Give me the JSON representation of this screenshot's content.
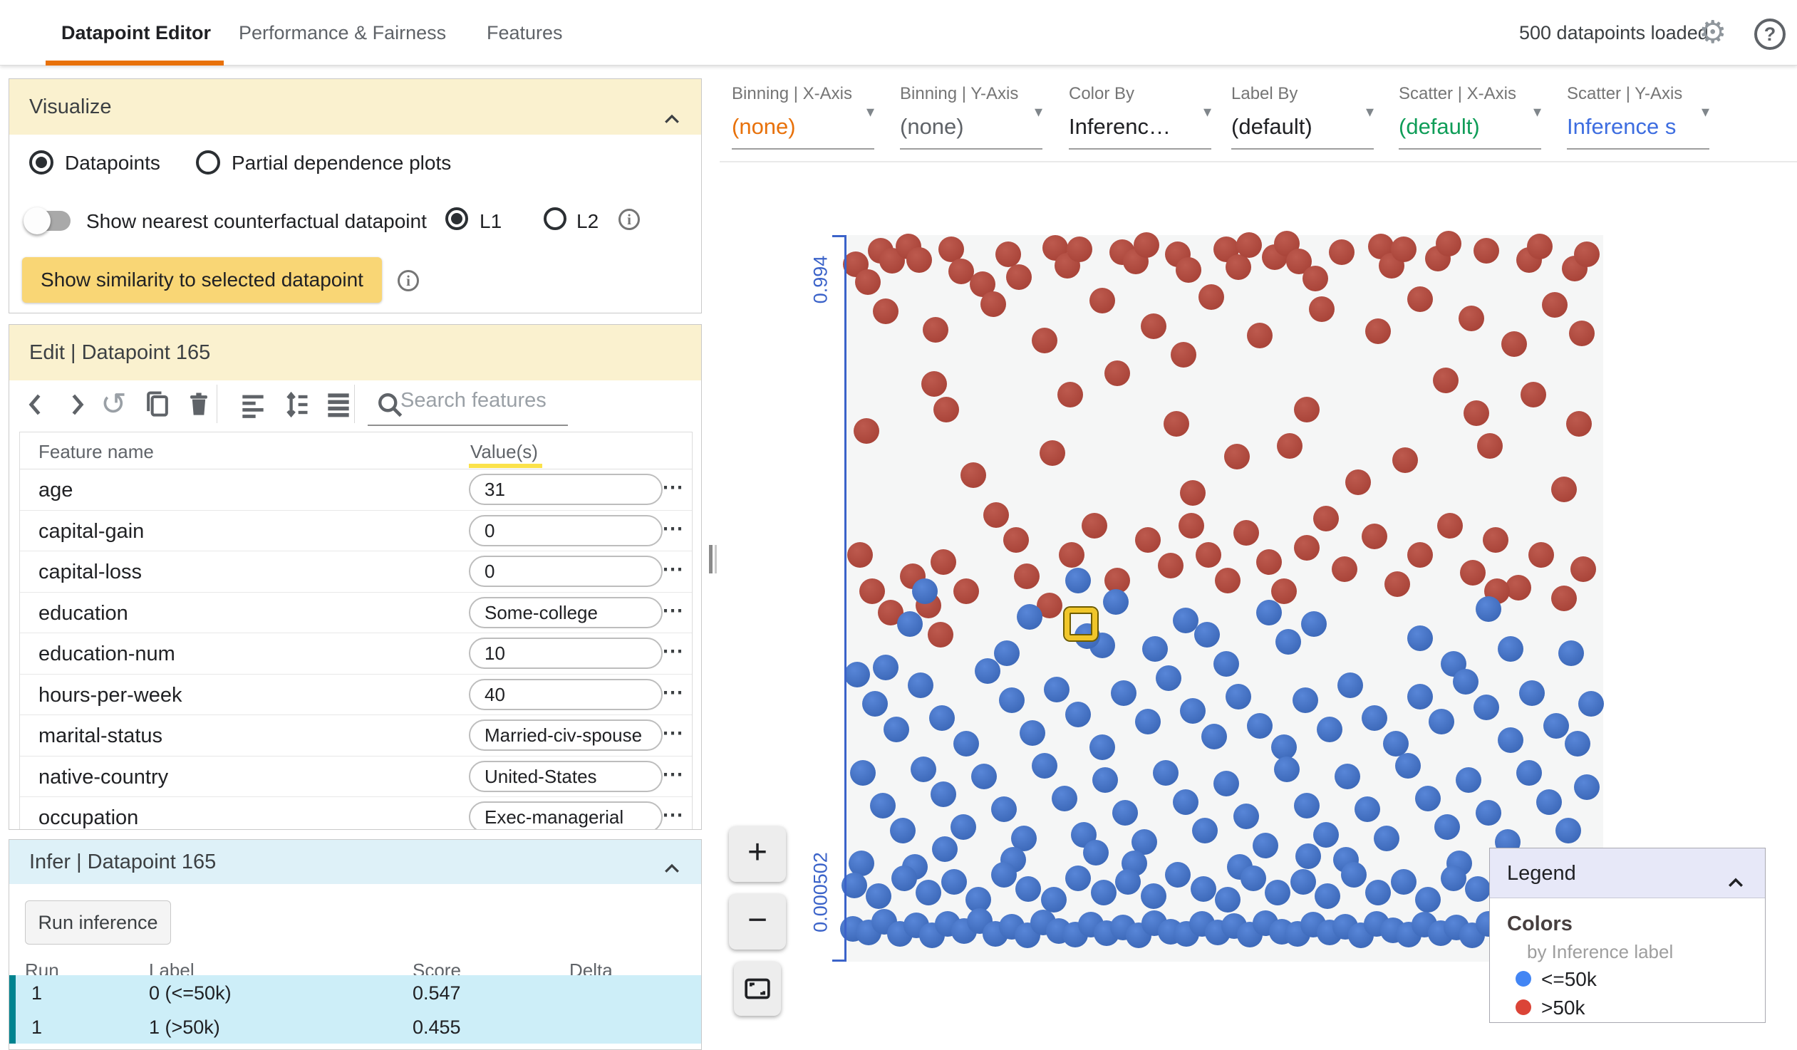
{
  "colors": {
    "accent_orange": "#e8710a",
    "green": "#0f9d58",
    "link_blue": "#3d6de0",
    "axis_blue": "#3b63c9",
    "teal": "#00838f",
    "legend_blue": "#4285f4",
    "legend_red": "#db4437",
    "gray_value": "#5f6368",
    "dark_value": "#202124"
  },
  "header": {
    "tabs": [
      {
        "label": "Datapoint Editor",
        "active": true
      },
      {
        "label": "Performance & Fairness",
        "active": false
      },
      {
        "label": "Features",
        "active": false
      }
    ],
    "status": "500 datapoints loaded"
  },
  "visualize": {
    "title": "Visualize",
    "radio_datapoints": "Datapoints",
    "radio_pdp": "Partial dependence plots",
    "toggle_label": "Show nearest counterfactual datapoint",
    "l1": "L1",
    "l2": "L2",
    "similarity_button": "Show similarity to selected datapoint"
  },
  "edit": {
    "title": "Edit | Datapoint 165",
    "search_placeholder": "Search features",
    "columns": {
      "name": "Feature name",
      "values": "Value(s)"
    },
    "menu_glyph": "⋯",
    "features": [
      {
        "name": "age",
        "value": "31"
      },
      {
        "name": "capital-gain",
        "value": "0"
      },
      {
        "name": "capital-loss",
        "value": "0"
      },
      {
        "name": "education",
        "value": "Some-college"
      },
      {
        "name": "education-num",
        "value": "10"
      },
      {
        "name": "hours-per-week",
        "value": "40"
      },
      {
        "name": "marital-status",
        "value": "Married-civ-spouse"
      },
      {
        "name": "native-country",
        "value": "United-States"
      },
      {
        "name": "occupation",
        "value": "Exec-managerial"
      }
    ]
  },
  "infer": {
    "title": "Infer | Datapoint 165",
    "run_button": "Run inference",
    "columns": [
      "Run",
      "Label",
      "Score",
      "Delta"
    ],
    "rows": [
      {
        "run": "1",
        "label": "0 (<=50k)",
        "score": "0.547",
        "delta": ""
      },
      {
        "run": "1",
        "label": "1 (>50k)",
        "score": "0.455",
        "delta": ""
      }
    ]
  },
  "controls": {
    "dropdowns": [
      {
        "label": "Binning | X-Axis",
        "value": "(none)",
        "color": "#e8710a"
      },
      {
        "label": "Binning | Y-Axis",
        "value": "(none)",
        "color": "#5f6368"
      },
      {
        "label": "Color By",
        "value": "Inferenc…",
        "color": "#202124"
      },
      {
        "label": "Label By",
        "value": "(default)",
        "color": "#202124"
      },
      {
        "label": "Scatter | X-Axis",
        "value": "(default)",
        "color": "#0f9d58"
      },
      {
        "label": "Scatter | Y-Axis",
        "value": "Inference s",
        "color": "#3d6de0"
      }
    ]
  },
  "scatter": {
    "y_axis_top_label": "0.994",
    "y_axis_bottom_label": "0.000502",
    "selected": {
      "x": 31.0,
      "y": 53.5
    },
    "dots": {
      "red": [
        [
          1.2,
          4.0
        ],
        [
          2.8,
          6.5
        ],
        [
          4.5,
          2.2
        ],
        [
          6.0,
          3.5
        ],
        [
          8.2,
          1.6
        ],
        [
          9.6,
          3.4
        ],
        [
          13.8,
          2.0
        ],
        [
          15.2,
          5.0
        ],
        [
          18.0,
          6.8
        ],
        [
          21.4,
          2.6
        ],
        [
          22.8,
          5.8
        ],
        [
          27.6,
          1.8
        ],
        [
          29.2,
          4.2
        ],
        [
          30.8,
          2.0
        ],
        [
          36.4,
          2.4
        ],
        [
          38.2,
          3.6
        ],
        [
          39.6,
          1.4
        ],
        [
          43.8,
          2.6
        ],
        [
          45.2,
          4.8
        ],
        [
          50.2,
          2.0
        ],
        [
          51.8,
          4.4
        ],
        [
          53.2,
          1.4
        ],
        [
          56.6,
          3.0
        ],
        [
          58.2,
          1.2
        ],
        [
          59.8,
          3.6
        ],
        [
          62.0,
          6.0
        ],
        [
          65.4,
          2.4
        ],
        [
          70.6,
          1.6
        ],
        [
          72.0,
          4.2
        ],
        [
          73.6,
          2.0
        ],
        [
          78.2,
          3.2
        ],
        [
          79.6,
          1.2
        ],
        [
          84.6,
          2.2
        ],
        [
          90.2,
          3.4
        ],
        [
          91.6,
          1.6
        ],
        [
          96.2,
          4.6
        ],
        [
          97.8,
          2.6
        ],
        [
          5.2,
          10.5
        ],
        [
          11.8,
          13.0
        ],
        [
          19.4,
          9.5
        ],
        [
          26.2,
          14.5
        ],
        [
          33.8,
          9.0
        ],
        [
          40.6,
          12.5
        ],
        [
          44.5,
          16.5
        ],
        [
          48.2,
          8.5
        ],
        [
          54.6,
          13.8
        ],
        [
          62.8,
          10.2
        ],
        [
          70.2,
          13.2
        ],
        [
          75.8,
          8.8
        ],
        [
          82.6,
          11.5
        ],
        [
          88.2,
          15.0
        ],
        [
          93.6,
          9.6
        ],
        [
          97.2,
          13.5
        ],
        [
          2.6,
          27.0
        ],
        [
          11.6,
          20.5
        ],
        [
          13.2,
          24.0
        ],
        [
          16.8,
          33.0
        ],
        [
          27.2,
          30.0
        ],
        [
          29.6,
          22.0
        ],
        [
          35.8,
          19.0
        ],
        [
          43.6,
          26.0
        ],
        [
          45.8,
          35.5
        ],
        [
          51.6,
          30.5
        ],
        [
          58.6,
          29.0
        ],
        [
          60.8,
          24.0
        ],
        [
          67.6,
          34.0
        ],
        [
          73.8,
          31.0
        ],
        [
          79.2,
          20.0
        ],
        [
          83.2,
          24.5
        ],
        [
          85.0,
          29.0
        ],
        [
          90.8,
          22.0
        ],
        [
          94.8,
          35.0
        ],
        [
          96.8,
          26.0
        ],
        [
          1.8,
          44.0
        ],
        [
          3.4,
          49.0
        ],
        [
          5.8,
          52.0
        ],
        [
          8.8,
          47.0
        ],
        [
          10.8,
          51.0
        ],
        [
          12.8,
          45.0
        ],
        [
          15.8,
          49.0
        ],
        [
          19.8,
          38.5
        ],
        [
          22.4,
          42.0
        ],
        [
          23.8,
          47.0
        ],
        [
          26.8,
          51.0
        ],
        [
          29.8,
          44.0
        ],
        [
          32.8,
          40.0
        ],
        [
          35.8,
          47.5
        ],
        [
          39.8,
          42.0
        ],
        [
          42.8,
          45.5
        ],
        [
          45.6,
          40.0
        ],
        [
          47.8,
          44.0
        ],
        [
          50.4,
          47.5
        ],
        [
          52.8,
          41.0
        ],
        [
          55.8,
          45.0
        ],
        [
          57.8,
          49.0
        ],
        [
          60.8,
          43.0
        ],
        [
          63.4,
          39.0
        ],
        [
          65.8,
          46.0
        ],
        [
          69.8,
          41.5
        ],
        [
          72.8,
          48.0
        ],
        [
          75.8,
          44.0
        ],
        [
          79.8,
          40.0
        ],
        [
          82.8,
          46.5
        ],
        [
          85.8,
          42.0
        ],
        [
          88.8,
          48.5
        ],
        [
          91.8,
          44.0
        ],
        [
          94.8,
          50.0
        ],
        [
          97.4,
          46.0
        ],
        [
          12.4,
          55.0
        ],
        [
          86.0,
          49.0
        ]
      ],
      "blue": [
        [
          30.6,
          47.5
        ],
        [
          24.2,
          52.5
        ],
        [
          8.4,
          53.5
        ],
        [
          10.4,
          49.0
        ],
        [
          35.6,
          50.5
        ],
        [
          33.8,
          56.5
        ],
        [
          31.8,
          55.2
        ],
        [
          21.2,
          57.5
        ],
        [
          44.8,
          53.0
        ],
        [
          47.6,
          55.0
        ],
        [
          40.8,
          57.0
        ],
        [
          55.8,
          52.0
        ],
        [
          58.4,
          56.0
        ],
        [
          61.8,
          53.5
        ],
        [
          75.8,
          55.5
        ],
        [
          84.8,
          51.5
        ],
        [
          87.8,
          57.0
        ],
        [
          95.8,
          57.5
        ],
        [
          1.4,
          60.5
        ],
        [
          3.8,
          64.5
        ],
        [
          5.2,
          59.5
        ],
        [
          6.6,
          68.0
        ],
        [
          9.8,
          62.0
        ],
        [
          12.6,
          66.5
        ],
        [
          15.8,
          70.0
        ],
        [
          18.6,
          60.0
        ],
        [
          21.8,
          64.0
        ],
        [
          24.6,
          68.5
        ],
        [
          27.8,
          62.5
        ],
        [
          30.6,
          66.0
        ],
        [
          33.8,
          70.5
        ],
        [
          36.6,
          63.0
        ],
        [
          39.8,
          67.0
        ],
        [
          42.6,
          61.0
        ],
        [
          45.8,
          65.5
        ],
        [
          48.6,
          69.0
        ],
        [
          50.2,
          59.0
        ],
        [
          51.8,
          63.5
        ],
        [
          54.6,
          67.5
        ],
        [
          57.8,
          70.5
        ],
        [
          60.6,
          64.0
        ],
        [
          63.8,
          68.0
        ],
        [
          66.6,
          62.0
        ],
        [
          69.8,
          66.5
        ],
        [
          72.6,
          70.0
        ],
        [
          75.8,
          63.5
        ],
        [
          78.6,
          67.0
        ],
        [
          80.2,
          59.0
        ],
        [
          81.8,
          61.5
        ],
        [
          84.6,
          65.0
        ],
        [
          87.8,
          69.5
        ],
        [
          90.6,
          63.0
        ],
        [
          93.8,
          67.5
        ],
        [
          96.6,
          70.0
        ],
        [
          98.4,
          64.5
        ],
        [
          2.2,
          74.0
        ],
        [
          4.8,
          78.5
        ],
        [
          7.4,
          82.0
        ],
        [
          10.2,
          73.5
        ],
        [
          12.8,
          77.0
        ],
        [
          13.0,
          84.5
        ],
        [
          15.4,
          81.5
        ],
        [
          18.2,
          74.5
        ],
        [
          20.8,
          79.0
        ],
        [
          23.4,
          83.0
        ],
        [
          26.2,
          73.0
        ],
        [
          28.8,
          77.5
        ],
        [
          31.4,
          82.5
        ],
        [
          33.0,
          85.0
        ],
        [
          34.2,
          75.0
        ],
        [
          36.8,
          79.5
        ],
        [
          39.4,
          83.5
        ],
        [
          42.2,
          74.0
        ],
        [
          44.8,
          78.0
        ],
        [
          47.4,
          82.0
        ],
        [
          50.2,
          75.5
        ],
        [
          52.8,
          80.0
        ],
        [
          55.4,
          84.0
        ],
        [
          58.2,
          73.5
        ],
        [
          60.8,
          78.5
        ],
        [
          61.0,
          85.5
        ],
        [
          63.4,
          82.5
        ],
        [
          66.2,
          74.5
        ],
        [
          68.8,
          79.0
        ],
        [
          71.4,
          83.0
        ],
        [
          74.2,
          73.0
        ],
        [
          76.8,
          77.5
        ],
        [
          79.4,
          81.5
        ],
        [
          82.2,
          75.0
        ],
        [
          84.8,
          79.5
        ],
        [
          87.4,
          83.5
        ],
        [
          90.2,
          74.0
        ],
        [
          92.8,
          78.0
        ],
        [
          95.4,
          82.0
        ],
        [
          97.8,
          76.0
        ],
        [
          2.0,
          86.5
        ],
        [
          9.0,
          87.0
        ],
        [
          22.0,
          86.0
        ],
        [
          38.0,
          86.5
        ],
        [
          52.0,
          87.0
        ],
        [
          66.0,
          86.0
        ],
        [
          81.0,
          86.5
        ],
        [
          94.0,
          87.0
        ],
        [
          1.0,
          89.5
        ],
        [
          4.2,
          91.0
        ],
        [
          7.6,
          88.5
        ],
        [
          10.8,
          90.5
        ],
        [
          14.2,
          89.0
        ],
        [
          17.4,
          91.5
        ],
        [
          20.8,
          88.0
        ],
        [
          24.0,
          90.0
        ],
        [
          27.4,
          91.5
        ],
        [
          30.6,
          88.5
        ],
        [
          34.0,
          90.5
        ],
        [
          37.2,
          89.0
        ],
        [
          40.6,
          91.0
        ],
        [
          43.8,
          88.0
        ],
        [
          47.2,
          90.0
        ],
        [
          50.4,
          91.5
        ],
        [
          53.8,
          88.5
        ],
        [
          57.0,
          90.5
        ],
        [
          60.4,
          89.0
        ],
        [
          63.6,
          91.0
        ],
        [
          67.0,
          88.0
        ],
        [
          70.2,
          90.5
        ],
        [
          73.6,
          89.0
        ],
        [
          76.8,
          91.5
        ],
        [
          80.2,
          88.5
        ],
        [
          83.4,
          90.0
        ],
        [
          86.8,
          91.0
        ],
        [
          90.0,
          88.5
        ],
        [
          93.4,
          90.5
        ],
        [
          96.6,
          89.5
        ],
        [
          98.6,
          91.0
        ],
        [
          0.8,
          95.5
        ],
        [
          2.9,
          96.0
        ],
        [
          5.0,
          94.5
        ],
        [
          7.1,
          96.2
        ],
        [
          9.2,
          95.0
        ],
        [
          11.3,
          96.4
        ],
        [
          13.4,
          94.8
        ],
        [
          15.5,
          95.8
        ],
        [
          17.6,
          94.4
        ],
        [
          19.7,
          96.2
        ],
        [
          21.8,
          95.2
        ],
        [
          23.9,
          96.4
        ],
        [
          26.0,
          94.6
        ],
        [
          28.1,
          95.8
        ],
        [
          30.2,
          96.3
        ],
        [
          32.3,
          94.9
        ],
        [
          34.4,
          96.1
        ],
        [
          36.5,
          95.3
        ],
        [
          38.6,
          96.4
        ],
        [
          40.7,
          94.7
        ],
        [
          42.8,
          95.9
        ],
        [
          44.9,
          96.2
        ],
        [
          47.0,
          94.8
        ],
        [
          49.1,
          96.0
        ],
        [
          51.2,
          95.1
        ],
        [
          53.3,
          96.3
        ],
        [
          55.4,
          94.7
        ],
        [
          57.5,
          95.9
        ],
        [
          59.6,
          96.2
        ],
        [
          61.7,
          94.9
        ],
        [
          63.8,
          96.0
        ],
        [
          65.9,
          95.2
        ],
        [
          68.0,
          96.4
        ],
        [
          70.1,
          94.8
        ],
        [
          72.2,
          95.7
        ],
        [
          74.3,
          96.3
        ],
        [
          76.4,
          94.9
        ],
        [
          78.5,
          96.1
        ],
        [
          80.6,
          95.3
        ],
        [
          82.7,
          96.4
        ],
        [
          84.8,
          94.8
        ],
        [
          86.9,
          95.9
        ],
        [
          89.0,
          96.2
        ],
        [
          91.1,
          94.9
        ],
        [
          93.2,
          96.0
        ],
        [
          95.3,
          95.4
        ],
        [
          97.4,
          96.2
        ],
        [
          99.0,
          95.0
        ]
      ]
    }
  },
  "zoom_controls": {
    "zoom_in": "+",
    "zoom_out": "−"
  },
  "legend": {
    "title": "Legend",
    "colors_title": "Colors",
    "subtitle": "by Inference label",
    "items": [
      {
        "label": "<=50k",
        "color": "#4285f4"
      },
      {
        "label": ">50k",
        "color": "#db4437"
      }
    ]
  }
}
